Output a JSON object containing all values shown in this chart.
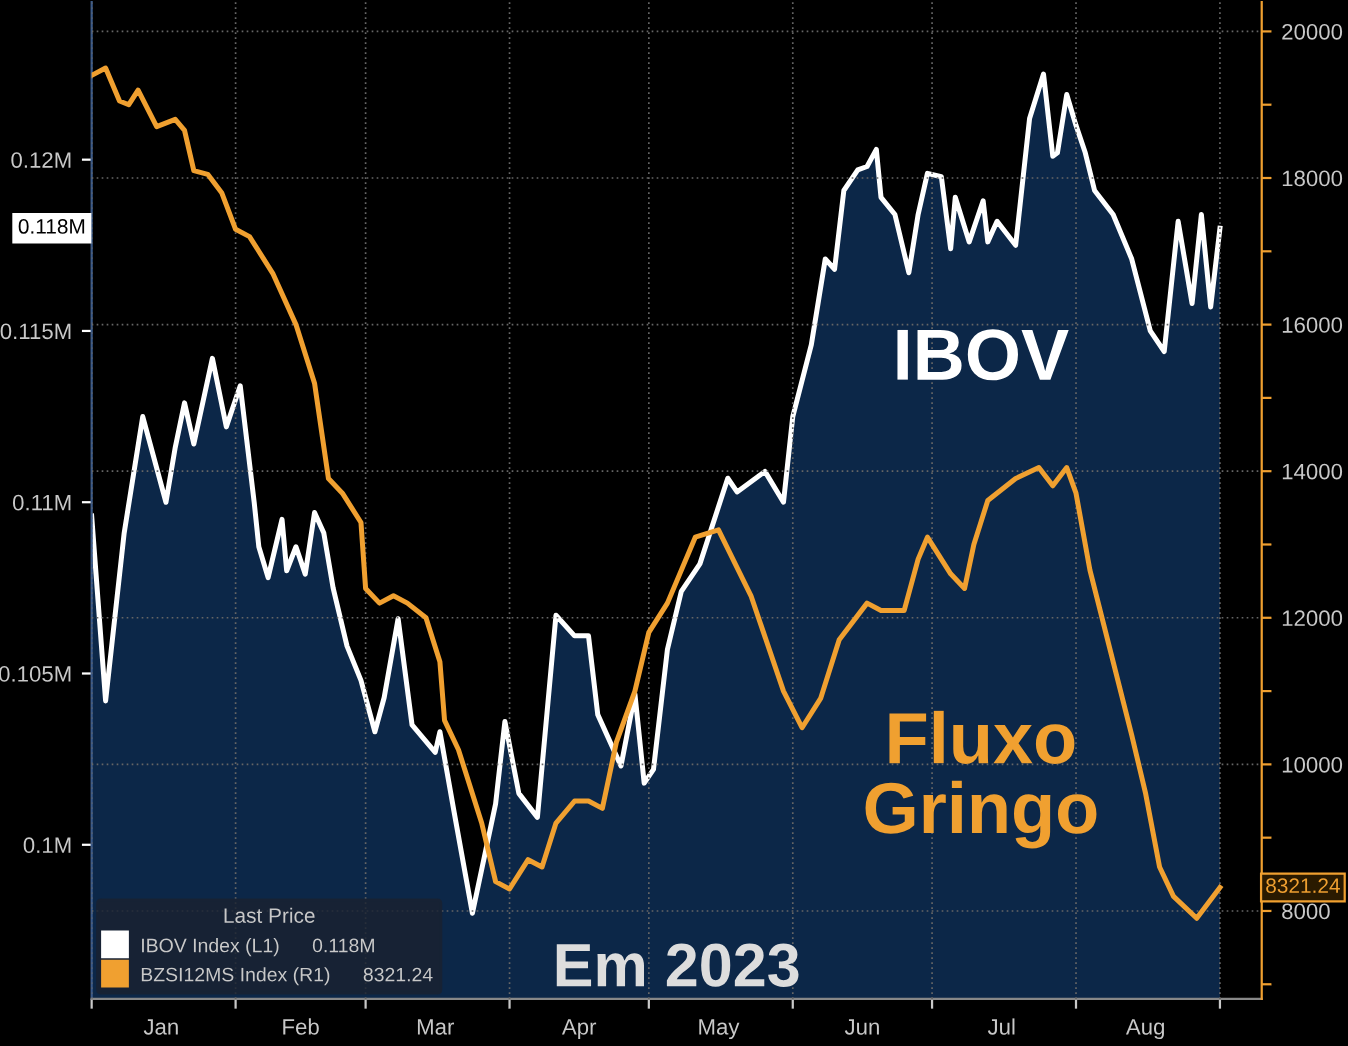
{
  "chart_data": {
    "type": "area",
    "annotations": [
      "IBOV",
      "Fluxo\nGringo",
      "Em 2023",
      "0.118M",
      "8321.24"
    ],
    "legend_title": "Last Price",
    "legend": "bottom left",
    "grid": true,
    "xlim": [
      "2023-01-01",
      "2023-09-10"
    ],
    "xticks": [
      {
        "value": "2023-01-01",
        "label": null
      },
      {
        "value": "2023-01-16",
        "label": "Jan"
      },
      {
        "value": "2023-02-01",
        "label": null
      },
      {
        "value": "2023-02-15",
        "label": "Feb"
      },
      {
        "value": "2023-03-01",
        "label": null
      },
      {
        "value": "2023-03-16",
        "label": "Mar"
      },
      {
        "value": "2023-04-01",
        "label": null
      },
      {
        "value": "2023-04-16",
        "label": "Apr"
      },
      {
        "value": "2023-05-01",
        "label": null
      },
      {
        "value": "2023-05-16",
        "label": "May"
      },
      {
        "value": "2023-06-01",
        "label": null
      },
      {
        "value": "2023-06-16",
        "label": "Jun"
      },
      {
        "value": "2023-07-01",
        "label": null
      },
      {
        "value": "2023-07-16",
        "label": "Jul"
      },
      {
        "value": "2023-08-01",
        "label": null
      },
      {
        "value": "2023-08-16",
        "label": "Aug"
      },
      {
        "value": "2023-09-01",
        "label": null
      }
    ],
    "ylim": [
      95500,
      124600
    ],
    "yticks": [
      {
        "value": 100000,
        "label": "0.1M"
      },
      {
        "value": 105000,
        "label": "0.105M"
      },
      {
        "value": 110000,
        "label": "0.11M"
      },
      {
        "value": 115000,
        "label": "0.115M"
      },
      {
        "value": 120000,
        "label": "0.12M"
      }
    ],
    "y2lim": [
      6800,
      20400
    ],
    "y2ticks": [
      {
        "value": 7000,
        "label": null
      },
      8000,
      {
        "value": 9000,
        "label": null
      },
      10000,
      {
        "value": 11000,
        "label": null
      },
      12000,
      {
        "value": 13000,
        "label": null
      },
      14000,
      {
        "value": 15000,
        "label": null
      },
      16000,
      {
        "value": 17000,
        "label": null
      },
      18000,
      {
        "value": 19000,
        "label": null
      },
      20000
    ],
    "series": [
      {
        "name": "IBOV Index (L1)      0.118M",
        "color": "#ffffff",
        "x": [
          "2023-01-01",
          "2023-01-04",
          "2023-01-08",
          "2023-01-12",
          "2023-01-17",
          "2023-01-19",
          "2023-01-21",
          "2023-01-23",
          "2023-01-27",
          "2023-01-30",
          "2023-02-02",
          "2023-02-05",
          "2023-02-06",
          "2023-02-08",
          "2023-02-11",
          "2023-02-12",
          "2023-02-14",
          "2023-02-16",
          "2023-02-18",
          "2023-02-20",
          "2023-02-22",
          "2023-02-25",
          "2023-02-28",
          "2023-03-03",
          "2023-03-05",
          "2023-03-08",
          "2023-03-11",
          "2023-03-16",
          "2023-03-17",
          "2023-03-20",
          "2023-03-24",
          "2023-03-29",
          "2023-03-31",
          "2023-04-03",
          "2023-04-07",
          "2023-04-11",
          "2023-04-15",
          "2023-04-18",
          "2023-04-20",
          "2023-04-25",
          "2023-04-28",
          "2023-04-30",
          "2023-05-02",
          "2023-05-05",
          "2023-05-08",
          "2023-05-12",
          "2023-05-18",
          "2023-05-20",
          "2023-05-26",
          "2023-05-30",
          "2023-06-01",
          "2023-06-05",
          "2023-06-08",
          "2023-06-10",
          "2023-06-12",
          "2023-06-15",
          "2023-06-17",
          "2023-06-19",
          "2023-06-20",
          "2023-06-23",
          "2023-06-26",
          "2023-06-28",
          "2023-06-30",
          "2023-07-03",
          "2023-07-05",
          "2023-07-06",
          "2023-07-09",
          "2023-07-12",
          "2023-07-13",
          "2023-07-15",
          "2023-07-19",
          "2023-07-22",
          "2023-07-25",
          "2023-07-27",
          "2023-07-28",
          "2023-07-30",
          "2023-08-01",
          "2023-08-03",
          "2023-08-05",
          "2023-08-09",
          "2023-08-13",
          "2023-08-17",
          "2023-08-20",
          "2023-08-23",
          "2023-08-26",
          "2023-08-28",
          "2023-08-30",
          "2023-09-01"
        ],
        "values": [
          109600,
          104200,
          109100,
          112500,
          110000,
          111600,
          112900,
          111700,
          114200,
          112200,
          113400,
          110000,
          108700,
          107800,
          109500,
          108000,
          108700,
          107900,
          109700,
          109100,
          107500,
          105800,
          104800,
          103300,
          104300,
          106600,
          103500,
          102700,
          103300,
          101000,
          98000,
          101200,
          103600,
          101500,
          100800,
          106700,
          106100,
          106100,
          103800,
          102300,
          104400,
          101800,
          102200,
          105700,
          107400,
          108200,
          110700,
          110300,
          110900,
          110000,
          112500,
          114600,
          117100,
          116800,
          119100,
          119700,
          119800,
          120300,
          118900,
          118400,
          116700,
          118400,
          119600,
          119500,
          117400,
          118900,
          117600,
          118800,
          117600,
          118200,
          117500,
          121200,
          122500,
          120100,
          120200,
          121900,
          121000,
          120200,
          119100,
          118400,
          117100,
          115000,
          114400,
          118200,
          115800,
          118400,
          115700,
          118000
        ]
      },
      {
        "name": "BZSI12MS Index (R1)      8321.24",
        "type": "line",
        "axis": "y2",
        "color": "#f0a030",
        "x": [
          "2023-01-01",
          "2023-01-04",
          "2023-01-07",
          "2023-01-09",
          "2023-01-11",
          "2023-01-15",
          "2023-01-19",
          "2023-01-21",
          "2023-01-23",
          "2023-01-26",
          "2023-01-29",
          "2023-02-01",
          "2023-02-04",
          "2023-02-09",
          "2023-02-14",
          "2023-02-18",
          "2023-02-21",
          "2023-02-24",
          "2023-02-28",
          "2023-03-01",
          "2023-03-04",
          "2023-03-07",
          "2023-03-10",
          "2023-03-14",
          "2023-03-17",
          "2023-03-18",
          "2023-03-21",
          "2023-03-26",
          "2023-03-29",
          "2023-04-01",
          "2023-04-05",
          "2023-04-08",
          "2023-04-11",
          "2023-04-15",
          "2023-04-18",
          "2023-04-21",
          "2023-04-24",
          "2023-04-28",
          "2023-05-01",
          "2023-05-05",
          "2023-05-11",
          "2023-05-16",
          "2023-05-23",
          "2023-05-30",
          "2023-06-03",
          "2023-06-07",
          "2023-06-11",
          "2023-06-17",
          "2023-06-20",
          "2023-06-25",
          "2023-06-28",
          "2023-06-30",
          "2023-07-05",
          "2023-07-08",
          "2023-07-10",
          "2023-07-13",
          "2023-07-19",
          "2023-07-24",
          "2023-07-27",
          "2023-07-30",
          "2023-08-01",
          "2023-08-04",
          "2023-08-07",
          "2023-08-13",
          "2023-08-16",
          "2023-08-19",
          "2023-08-22",
          "2023-08-27",
          "2023-09-01"
        ],
        "values": [
          19400,
          19500,
          19050,
          19000,
          19200,
          18700,
          18800,
          18650,
          18100,
          18050,
          17800,
          17300,
          17200,
          16700,
          16000,
          15200,
          13900,
          13700,
          13300,
          12400,
          12200,
          12300,
          12200,
          12000,
          11400,
          10600,
          10200,
          9200,
          8400,
          8300,
          8700,
          8600,
          9200,
          9500,
          9500,
          9400,
          10300,
          11000,
          11800,
          12200,
          13100,
          13200,
          12300,
          11000,
          10500,
          10900,
          11700,
          12200,
          12100,
          12100,
          12800,
          13100,
          12600,
          12400,
          13000,
          13600,
          13900,
          14050,
          13800,
          14050,
          13700,
          12650,
          11900,
          10400,
          9600,
          8600,
          8200,
          7900,
          8321.24
        ]
      }
    ]
  }
}
